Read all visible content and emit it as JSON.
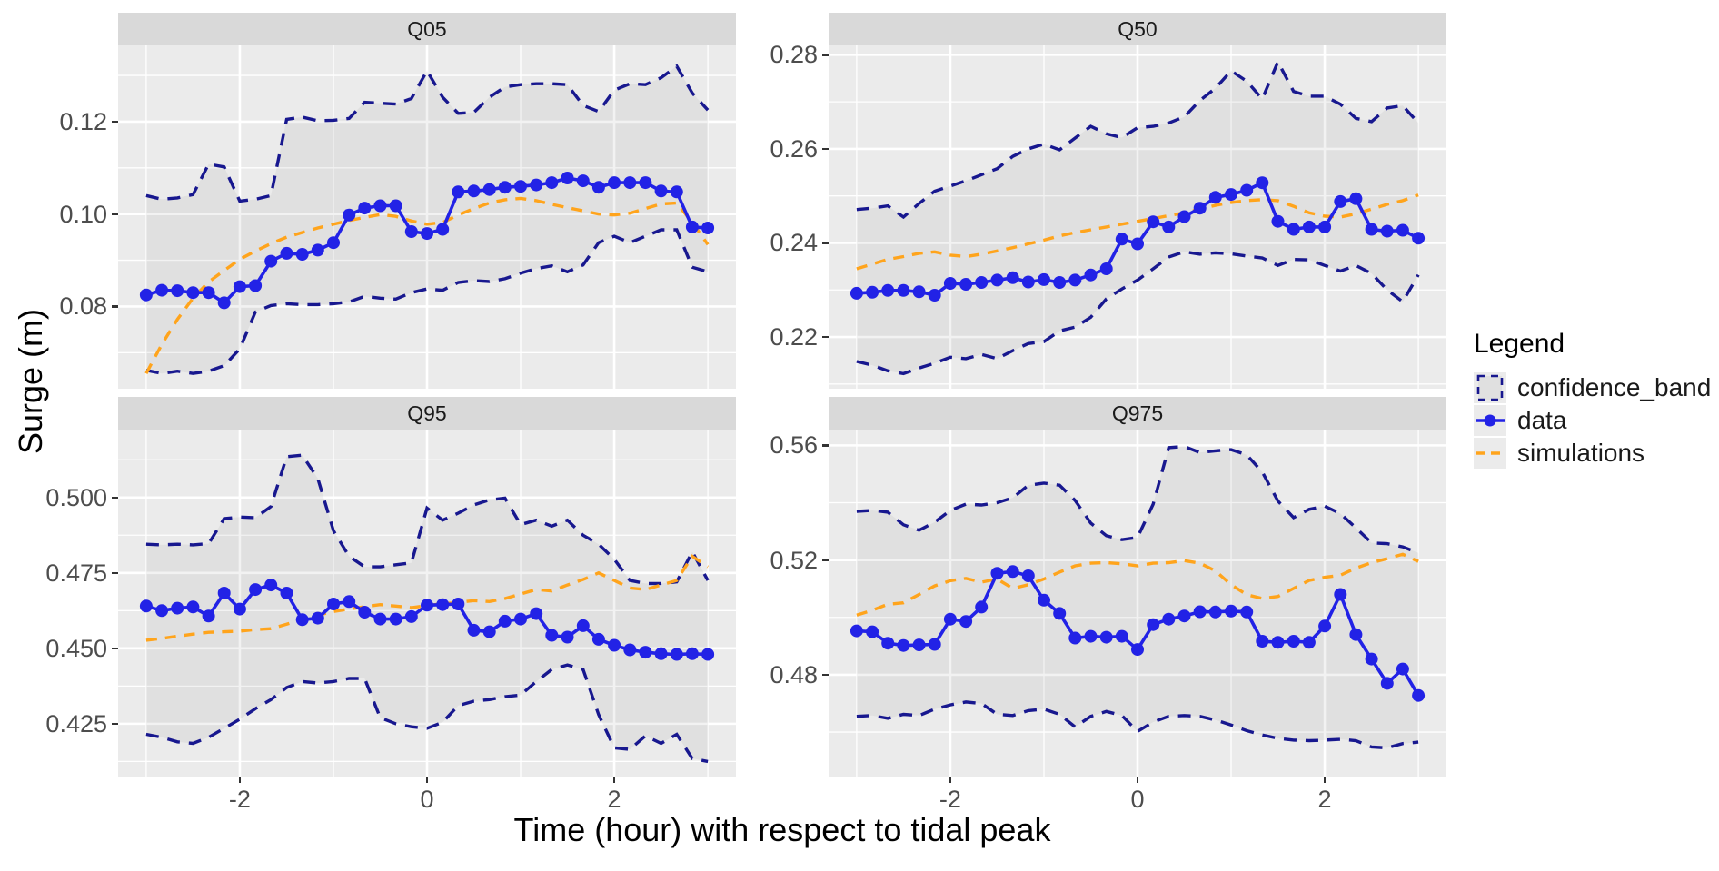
{
  "figure": {
    "x_axis_title": "Time (hour) with respect to tidal peak",
    "y_axis_title": "Surge (m)"
  },
  "chart_data": {
    "type": "line",
    "title": "",
    "xlabel": "Time (hour) with respect to tidal peak",
    "ylabel": "Surge (m)",
    "xlim": [
      -3.3,
      3.3
    ],
    "x_ticks": [
      -2,
      0,
      2
    ],
    "x_tick_labels": [
      "-2",
      "0",
      "2"
    ],
    "x_minor": [
      -3,
      -1,
      1,
      3
    ],
    "grid": "white-on-grey",
    "legend_position": "right",
    "legend": {
      "title": "Legend",
      "entries": [
        {
          "label": "confidence_band",
          "style": "dashed-box",
          "color": "#18188f"
        },
        {
          "label": "data",
          "style": "line-point",
          "color": "#2222e6"
        },
        {
          "label": "simulations",
          "style": "dashed-line",
          "color": "#ffa41c"
        }
      ]
    },
    "colors": {
      "panel_bg": "#ebebeb",
      "strip_bg": "#d9d9d9",
      "grid": "#ffffff",
      "band_fill": "rgba(128,128,128,0.10)",
      "confidence_band": "#18188f",
      "data": "#2222e6",
      "simulations": "#ffa41c",
      "tick_text": "#4d4d4d"
    },
    "x": [
      -3,
      -2.833,
      -2.667,
      -2.5,
      -2.333,
      -2.167,
      -2,
      -1.833,
      -1.667,
      -1.5,
      -1.333,
      -1.167,
      -1,
      -0.833,
      -0.667,
      -0.5,
      -0.333,
      -0.167,
      0,
      0.167,
      0.333,
      0.5,
      0.667,
      0.833,
      1,
      1.167,
      1.333,
      1.5,
      1.667,
      1.833,
      2,
      2.167,
      2.333,
      2.5,
      2.667,
      2.833,
      3
    ],
    "panels": [
      {
        "label": "Q05",
        "ylim": [
          0.0622,
          0.1365
        ],
        "yticks": [
          0.08,
          0.1,
          0.12
        ],
        "ytick_labels": [
          "0.08",
          "0.10",
          "0.12"
        ],
        "yminor": [
          0.07,
          0.09,
          0.11,
          0.13
        ],
        "series": {
          "data": [
            0.0825,
            0.0835,
            0.0834,
            0.083,
            0.083,
            0.0808,
            0.0843,
            0.0845,
            0.0898,
            0.0915,
            0.0913,
            0.0922,
            0.0938,
            0.0998,
            0.1013,
            0.1018,
            0.1018,
            0.0962,
            0.0958,
            0.0967,
            0.1048,
            0.105,
            0.1053,
            0.1058,
            0.106,
            0.1063,
            0.1068,
            0.1078,
            0.1072,
            0.1058,
            0.1068,
            0.1068,
            0.1068,
            0.105,
            0.1048,
            0.0972,
            0.097
          ],
          "simulations": [
            0.0655,
            0.0718,
            0.0772,
            0.0818,
            0.0853,
            0.0878,
            0.0902,
            0.092,
            0.0936,
            0.095,
            0.096,
            0.097,
            0.0978,
            0.0986,
            0.0993,
            0.0999,
            0.0995,
            0.0985,
            0.0978,
            0.0982,
            0.0998,
            0.1012,
            0.1024,
            0.1031,
            0.1034,
            0.1029,
            0.1021,
            0.1014,
            0.1007,
            0.1,
            0.0998,
            0.1002,
            0.1012,
            0.1022,
            0.1024,
            0.0982,
            0.0934
          ],
          "upper": [
            0.104,
            0.1032,
            0.1035,
            0.1042,
            0.1108,
            0.1102,
            0.1028,
            0.1032,
            0.104,
            0.1205,
            0.121,
            0.1202,
            0.1203,
            0.1207,
            0.1242,
            0.124,
            0.1238,
            0.125,
            0.131,
            0.1253,
            0.1218,
            0.122,
            0.1253,
            0.1275,
            0.128,
            0.1282,
            0.1282,
            0.128,
            0.1235,
            0.1222,
            0.1268,
            0.1282,
            0.128,
            0.1295,
            0.132,
            0.1262,
            0.1225
          ],
          "lower": [
            0.0662,
            0.0655,
            0.066,
            0.0655,
            0.066,
            0.0672,
            0.0708,
            0.0788,
            0.0802,
            0.0806,
            0.0804,
            0.0804,
            0.0806,
            0.081,
            0.0822,
            0.0818,
            0.0816,
            0.083,
            0.0838,
            0.0835,
            0.0852,
            0.0856,
            0.0854,
            0.086,
            0.0872,
            0.0882,
            0.0888,
            0.0875,
            0.089,
            0.0938,
            0.0952,
            0.0938,
            0.0952,
            0.0966,
            0.0966,
            0.0885,
            0.0875
          ]
        }
      },
      {
        "label": "Q50",
        "ylim": [
          0.209,
          0.282
        ],
        "yticks": [
          0.22,
          0.24,
          0.26,
          0.28
        ],
        "ytick_labels": [
          "0.22",
          "0.24",
          "0.26",
          "0.28"
        ],
        "yminor": [
          0.21,
          0.23,
          0.25,
          0.27
        ],
        "series": {
          "data": [
            0.2293,
            0.2295,
            0.2299,
            0.2299,
            0.2296,
            0.2289,
            0.2314,
            0.2312,
            0.2316,
            0.2321,
            0.2326,
            0.2317,
            0.2322,
            0.2316,
            0.2321,
            0.2332,
            0.2345,
            0.2408,
            0.2398,
            0.2445,
            0.2434,
            0.2456,
            0.2474,
            0.2497,
            0.2503,
            0.2512,
            0.2528,
            0.2446,
            0.2429,
            0.2434,
            0.2434,
            0.2488,
            0.2494,
            0.2429,
            0.2425,
            0.2427,
            0.241
          ],
          "simulations": [
            0.2345,
            0.2355,
            0.2365,
            0.2371,
            0.2378,
            0.2381,
            0.2374,
            0.2371,
            0.2376,
            0.2383,
            0.239,
            0.2398,
            0.2406,
            0.2415,
            0.2422,
            0.2428,
            0.2434,
            0.244,
            0.2446,
            0.2452,
            0.2458,
            0.2464,
            0.2472,
            0.248,
            0.2486,
            0.249,
            0.2492,
            0.249,
            0.2478,
            0.2464,
            0.2457,
            0.2455,
            0.2462,
            0.2472,
            0.2482,
            0.249,
            0.2502
          ],
          "upper": [
            0.2471,
            0.2474,
            0.2479,
            0.2455,
            0.2484,
            0.251,
            0.2521,
            0.2532,
            0.2545,
            0.2558,
            0.2584,
            0.26,
            0.261,
            0.2598,
            0.2623,
            0.2648,
            0.2632,
            0.2624,
            0.2645,
            0.2648,
            0.2655,
            0.2668,
            0.2703,
            0.2729,
            0.2766,
            0.2744,
            0.2706,
            0.2785,
            0.2722,
            0.2712,
            0.2712,
            0.2695,
            0.2665,
            0.2658,
            0.2687,
            0.2692,
            0.2655
          ],
          "lower": [
            0.2148,
            0.214,
            0.2128,
            0.2122,
            0.2134,
            0.2144,
            0.2157,
            0.2154,
            0.2163,
            0.2154,
            0.2171,
            0.2186,
            0.219,
            0.2213,
            0.2221,
            0.2242,
            0.2281,
            0.2302,
            0.2321,
            0.2345,
            0.237,
            0.2381,
            0.2376,
            0.2379,
            0.2377,
            0.2372,
            0.2368,
            0.2352,
            0.2365,
            0.2364,
            0.2352,
            0.234,
            0.2352,
            0.2335,
            0.23,
            0.2275,
            0.2332
          ]
        }
      },
      {
        "label": "Q95",
        "ylim": [
          0.4075,
          0.5225
        ],
        "yticks": [
          0.425,
          0.45,
          0.475,
          0.5
        ],
        "ytick_labels": [
          "0.425",
          "0.450",
          "0.475",
          "0.500"
        ],
        "yminor": [
          0.4125,
          0.4375,
          0.4625,
          0.4875,
          0.5125
        ],
        "series": {
          "data": [
            0.464,
            0.4625,
            0.4633,
            0.4637,
            0.4607,
            0.4683,
            0.463,
            0.4695,
            0.471,
            0.4683,
            0.4595,
            0.46,
            0.4647,
            0.4655,
            0.462,
            0.4597,
            0.4597,
            0.4605,
            0.4643,
            0.4645,
            0.4647,
            0.456,
            0.4555,
            0.459,
            0.4597,
            0.4615,
            0.4543,
            0.4537,
            0.4575,
            0.453,
            0.451,
            0.4495,
            0.4487,
            0.4482,
            0.448,
            0.4482,
            0.448
          ],
          "simulations": [
            0.4527,
            0.4533,
            0.454,
            0.4547,
            0.4553,
            0.4555,
            0.4557,
            0.4562,
            0.4565,
            0.458,
            0.4597,
            0.461,
            0.4622,
            0.463,
            0.4638,
            0.4645,
            0.464,
            0.4635,
            0.4642,
            0.4648,
            0.4652,
            0.4658,
            0.4655,
            0.4665,
            0.468,
            0.4695,
            0.469,
            0.471,
            0.4728,
            0.475,
            0.4725,
            0.47,
            0.4695,
            0.471,
            0.4725,
            0.4805,
            0.477
          ],
          "upper": [
            0.4845,
            0.4843,
            0.4845,
            0.4843,
            0.4847,
            0.493,
            0.4935,
            0.4933,
            0.497,
            0.5135,
            0.514,
            0.5063,
            0.489,
            0.4805,
            0.477,
            0.477,
            0.4777,
            0.4783,
            0.4965,
            0.4925,
            0.4948,
            0.4975,
            0.4992,
            0.4998,
            0.491,
            0.4925,
            0.4905,
            0.4925,
            0.4875,
            0.4845,
            0.4795,
            0.4725,
            0.4715,
            0.4715,
            0.472,
            0.482,
            0.4725
          ],
          "lower": [
            0.4215,
            0.4205,
            0.419,
            0.4185,
            0.4205,
            0.4235,
            0.4265,
            0.43,
            0.433,
            0.437,
            0.439,
            0.4385,
            0.439,
            0.44,
            0.44,
            0.427,
            0.425,
            0.424,
            0.4235,
            0.4255,
            0.431,
            0.4325,
            0.433,
            0.434,
            0.4345,
            0.439,
            0.443,
            0.4445,
            0.443,
            0.428,
            0.417,
            0.4165,
            0.421,
            0.4185,
            0.4215,
            0.4135,
            0.4125
          ]
        }
      },
      {
        "label": "Q975",
        "ylim": [
          0.4445,
          0.5655
        ],
        "yticks": [
          0.48,
          0.52,
          0.56
        ],
        "ytick_labels": [
          "0.48",
          "0.52",
          "0.56"
        ],
        "yminor": [
          0.46,
          0.5,
          0.54
        ],
        "series": {
          "data": [
            0.4953,
            0.495,
            0.491,
            0.4902,
            0.4904,
            0.4906,
            0.4994,
            0.4986,
            0.5036,
            0.5154,
            0.516,
            0.5145,
            0.506,
            0.5014,
            0.4928,
            0.4934,
            0.4931,
            0.4934,
            0.4888,
            0.4975,
            0.4994,
            0.5005,
            0.502,
            0.5019,
            0.5022,
            0.5019,
            0.4917,
            0.4913,
            0.4917,
            0.4913,
            0.497,
            0.508,
            0.494,
            0.4855,
            0.477,
            0.482,
            0.4728
          ],
          "simulations": [
            0.5008,
            0.5025,
            0.5046,
            0.5051,
            0.508,
            0.511,
            0.5128,
            0.5136,
            0.5123,
            0.5134,
            0.5101,
            0.5114,
            0.5134,
            0.5158,
            0.518,
            0.5189,
            0.5191,
            0.5187,
            0.518,
            0.5189,
            0.5191,
            0.5198,
            0.5189,
            0.5162,
            0.5114,
            0.5079,
            0.5066,
            0.5073,
            0.5101,
            0.5129,
            0.514,
            0.5147,
            0.5172,
            0.5191,
            0.5205,
            0.522,
            0.5195
          ],
          "upper": [
            0.537,
            0.5373,
            0.5367,
            0.5323,
            0.5304,
            0.5332,
            0.5373,
            0.5395,
            0.5392,
            0.54,
            0.5417,
            0.5461,
            0.5468,
            0.5461,
            0.5408,
            0.5329,
            0.5285,
            0.5271,
            0.5279,
            0.5395,
            0.5592,
            0.5596,
            0.5575,
            0.5581,
            0.5585,
            0.5567,
            0.5507,
            0.5406,
            0.5348,
            0.5377,
            0.5388,
            0.5362,
            0.5312,
            0.526,
            0.5257,
            0.5246,
            0.5225
          ],
          "lower": [
            0.4655,
            0.4658,
            0.4648,
            0.4662,
            0.4658,
            0.468,
            0.4695,
            0.4705,
            0.47,
            0.4662,
            0.4658,
            0.4675,
            0.468,
            0.4662,
            0.4618,
            0.4655,
            0.4672,
            0.4658,
            0.4602,
            0.4635,
            0.4655,
            0.4658,
            0.4655,
            0.4642,
            0.4625,
            0.4605,
            0.459,
            0.4578,
            0.4572,
            0.457,
            0.4572,
            0.4575,
            0.457,
            0.4548,
            0.4545,
            0.456,
            0.4565
          ]
        }
      }
    ]
  }
}
